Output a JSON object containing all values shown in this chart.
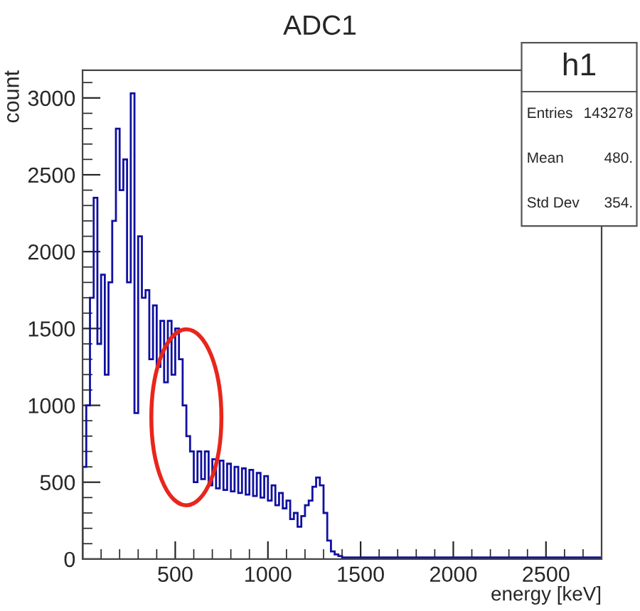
{
  "chart_data": {
    "type": "histogram",
    "title": "ADC1",
    "xlabel": "energy [keV]",
    "ylabel": "count",
    "color": "#1010a0",
    "bins": [
      0,
      20,
      40,
      60,
      80,
      100,
      120,
      140,
      160,
      180,
      200,
      220,
      240,
      260,
      280,
      300,
      320,
      340,
      360,
      380,
      400,
      420,
      440,
      460,
      480,
      500,
      520,
      540,
      560,
      580,
      600,
      620,
      640,
      660,
      680,
      700,
      720,
      740,
      760,
      780,
      800,
      820,
      840,
      860,
      880,
      900,
      920,
      940,
      960,
      980,
      1000,
      1020,
      1040,
      1060,
      1080,
      1100,
      1120,
      1140,
      1160,
      1180,
      1200,
      1220,
      1240,
      1260,
      1280,
      1300,
      1320,
      1340,
      1360,
      1380,
      1400,
      1450,
      1500,
      1600,
      1700,
      1800,
      1900,
      2000,
      2100,
      2200,
      2300,
      2400,
      2500,
      2600,
      2700,
      2800
    ],
    "values": [
      600,
      1000,
      1700,
      2350,
      1400,
      1850,
      1200,
      1800,
      2200,
      2800,
      2400,
      2600,
      1800,
      3030,
      950,
      2100,
      1700,
      1750,
      1300,
      1650,
      1250,
      1550,
      1150,
      1550,
      1200,
      1500,
      1300,
      1000,
      800,
      700,
      500,
      700,
      520,
      700,
      480,
      650,
      460,
      640,
      450,
      620,
      440,
      600,
      430,
      590,
      420,
      580,
      410,
      560,
      400,
      540,
      380,
      480,
      350,
      430,
      330,
      380,
      260,
      300,
      210,
      280,
      350,
      380,
      470,
      530,
      480,
      300,
      120,
      50,
      30,
      20,
      10,
      10,
      10,
      10,
      10,
      10,
      10,
      10,
      10,
      10,
      10,
      10,
      10,
      10,
      10
    ],
    "xlim": [
      0,
      2800
    ],
    "xticks": [
      500,
      1000,
      1500,
      2000,
      2500
    ],
    "ylim": [
      0,
      3180
    ],
    "yticks": [
      0,
      500,
      1000,
      1500,
      2000,
      2500,
      3000
    ],
    "grid": false,
    "annotations": [
      "h1",
      "Entries",
      "143278",
      "Mean",
      "480.",
      "Std Dev",
      "354."
    ]
  }
}
